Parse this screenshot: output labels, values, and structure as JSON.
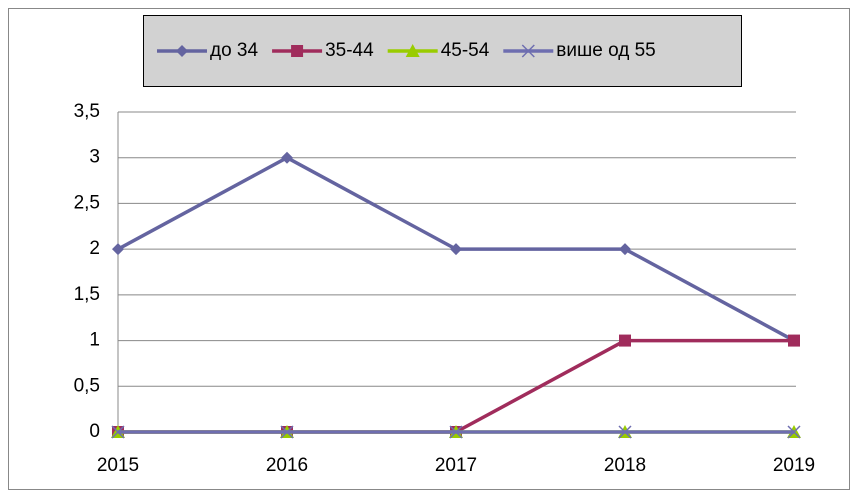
{
  "chart_data": {
    "type": "line",
    "categories": [
      "2015",
      "2016",
      "2017",
      "2018",
      "2019"
    ],
    "series": [
      {
        "name": "до 34",
        "color": "#6464a0",
        "marker": "diamond",
        "values": [
          2,
          3,
          2,
          2,
          1
        ]
      },
      {
        "name": "35-44",
        "color": "#a02c5c",
        "marker": "square",
        "values": [
          0,
          0,
          0,
          1,
          1
        ]
      },
      {
        "name": "45-54",
        "color": "#99cc00",
        "marker": "triangle",
        "values": [
          0,
          0,
          0,
          0,
          0
        ]
      },
      {
        "name": "више од 55",
        "color": "#6e6eb0",
        "marker": "x",
        "values": [
          0,
          0,
          0,
          0,
          0
        ]
      }
    ],
    "ylim": [
      0,
      3.5
    ],
    "yticks": [
      0,
      {
        "value": 0.5,
        "label": "0,5"
      },
      1,
      {
        "value": 1.5,
        "label": "1,5"
      },
      2,
      {
        "value": 2.5,
        "label": "2,5"
      },
      3,
      {
        "value": 3.5,
        "label": "3,5"
      }
    ],
    "grid": true,
    "legend": "top"
  }
}
